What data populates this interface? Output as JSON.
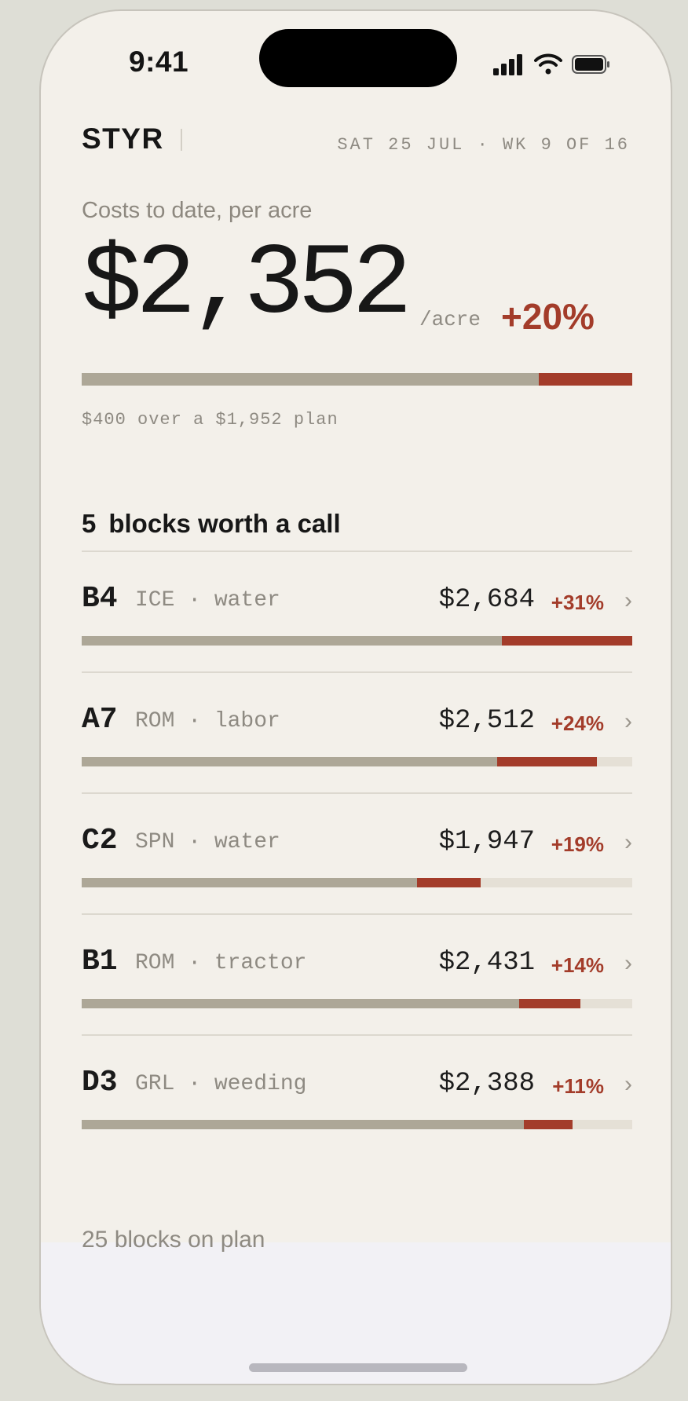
{
  "status_bar": {
    "time": "9:41"
  },
  "header": {
    "brand": "STYR",
    "date_line": "SAT 25 JUL · WK 9 OF 16"
  },
  "summary": {
    "label": "Costs to date, per acre",
    "amount": "$2,352",
    "unit": "/acre",
    "change": "+20%",
    "spent_per_acre": 2352,
    "plan_per_acre": 1952,
    "note": "$400 over a $1,952 plan"
  },
  "alerts": {
    "count": "5",
    "title": "blocks worth a call",
    "blocks": [
      {
        "code": "B4",
        "desc": "ICE · water",
        "amount": "$2,684",
        "change": "+31%",
        "plan_fraction": 0.763,
        "spent_fraction": 1.0
      },
      {
        "code": "A7",
        "desc": "ROM · labor",
        "amount": "$2,512",
        "change": "+24%",
        "plan_fraction": 0.755,
        "spent_fraction": 0.936
      },
      {
        "code": "C2",
        "desc": "SPN · water",
        "amount": "$1,947",
        "change": "+19%",
        "plan_fraction": 0.609,
        "spent_fraction": 0.725
      },
      {
        "code": "B1",
        "desc": "ROM · tractor",
        "amount": "$2,431",
        "change": "+14%",
        "plan_fraction": 0.795,
        "spent_fraction": 0.906
      },
      {
        "code": "D3",
        "desc": "GRL · weeding",
        "amount": "$2,388",
        "change": "+11%",
        "plan_fraction": 0.803,
        "spent_fraction": 0.891
      }
    ]
  },
  "footer": {
    "label": "25 blocks on plan"
  },
  "icons": {
    "signal": "cellular-signal-icon",
    "wifi": "wifi-icon",
    "battery": "battery-icon",
    "chevron": "chevron-right-icon"
  },
  "colors": {
    "accent": "#a33c2a",
    "bar_base": "#ada797",
    "bar_track": "#e5e0d6",
    "background": "#f3f0ea"
  }
}
